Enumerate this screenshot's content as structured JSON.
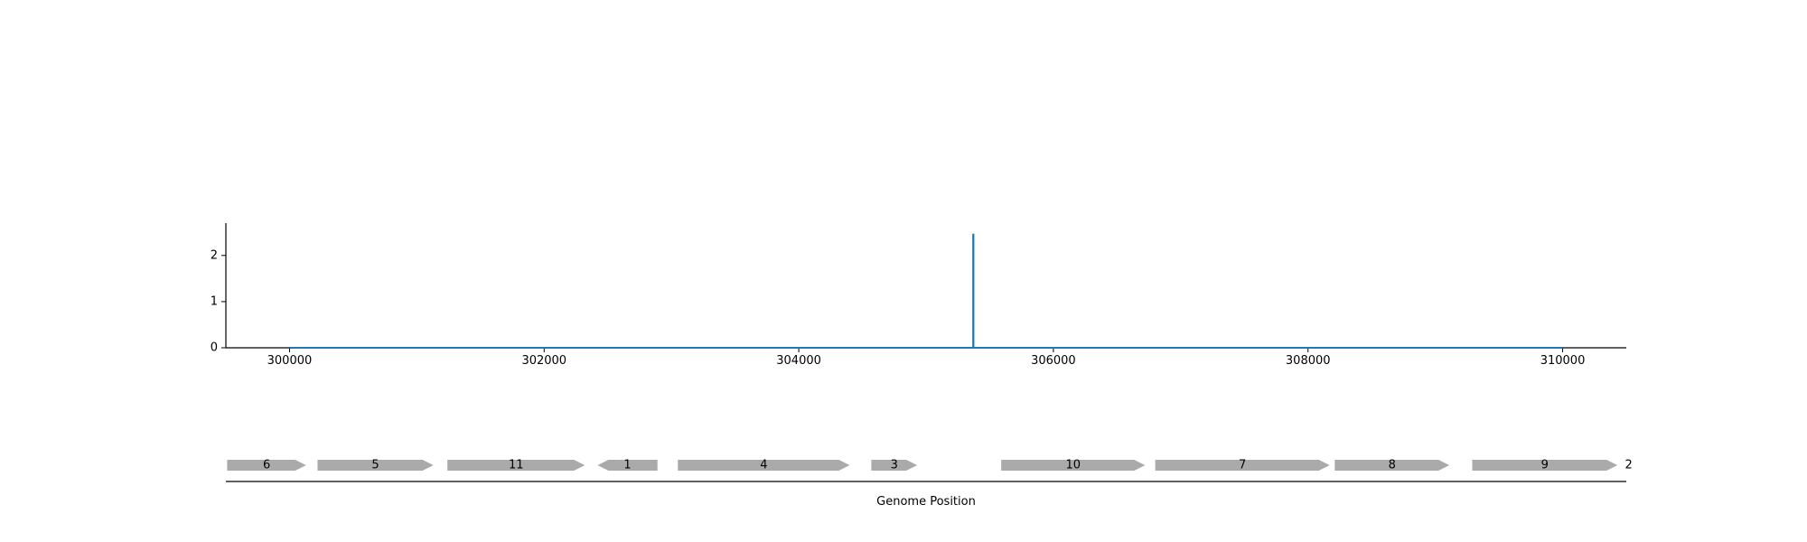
{
  "chart_data": [
    {
      "type": "line",
      "xlabel": "",
      "ylabel": "",
      "xlim": [
        299500,
        310500
      ],
      "ylim": [
        0,
        2.7
      ],
      "xticks": [
        300000,
        302000,
        304000,
        306000,
        308000,
        310000
      ],
      "xtick_labels": [
        "300000",
        "302000",
        "304000",
        "306000",
        "308000",
        "310000"
      ],
      "yticks": [
        0,
        1,
        2
      ],
      "ytick_labels": [
        "0",
        "1",
        "2"
      ],
      "grid": false,
      "color": "#1f77b4",
      "series": [
        {
          "x": [
            300000,
            305370,
            305370,
            305372,
            305372,
            310000
          ],
          "y": [
            0,
            0,
            2.45,
            2.45,
            0,
            0
          ]
        }
      ]
    },
    {
      "type": "gene-track",
      "xlabel": "Genome Position",
      "xlim": [
        299500,
        310500
      ],
      "color": "#aaaaaa",
      "genes": [
        {
          "label": "6",
          "start": 299510,
          "end": 300130,
          "strand": "+"
        },
        {
          "label": "5",
          "start": 300220,
          "end": 301130,
          "strand": "+"
        },
        {
          "label": "11",
          "start": 301240,
          "end": 302320,
          "strand": "+"
        },
        {
          "label": "1",
          "start": 302420,
          "end": 302890,
          "strand": "-"
        },
        {
          "label": "4",
          "start": 303050,
          "end": 304400,
          "strand": "+"
        },
        {
          "label": "3",
          "start": 304570,
          "end": 304930,
          "strand": "+"
        },
        {
          "label": "10",
          "start": 305590,
          "end": 306720,
          "strand": "+"
        },
        {
          "label": "7",
          "start": 306800,
          "end": 308170,
          "strand": "+"
        },
        {
          "label": "8",
          "start": 308210,
          "end": 309110,
          "strand": "+"
        },
        {
          "label": "9",
          "start": 309290,
          "end": 310430,
          "strand": "+"
        },
        {
          "label": "2",
          "start": 310490,
          "end": 310500,
          "strand": "+"
        }
      ]
    }
  ]
}
